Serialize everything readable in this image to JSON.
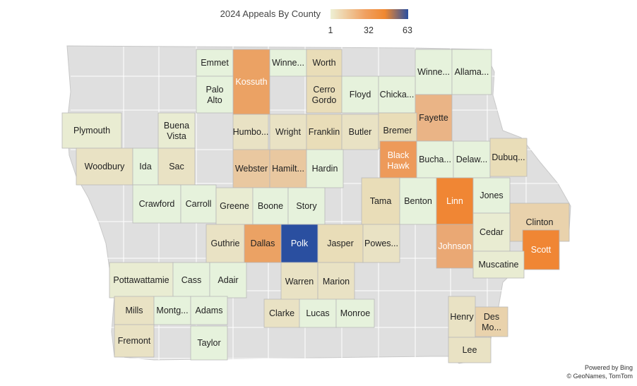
{
  "legend": {
    "title": "2024 Appeals By County",
    "min_label": "1",
    "mid_label": "32",
    "max_label": "63",
    "colors": [
      "#eef0d4",
      "#f0a060",
      "#f08830",
      "#2a4fa0"
    ]
  },
  "attribution": {
    "line1": "Powered by Bing",
    "line2": "© GeoNames, TomTom"
  },
  "map_colors": {
    "no_data": "#dfdfdf",
    "border": "#b8b8b8",
    "water_edge": "#c8c8c8"
  },
  "counties": [
    {
      "label": "Emmet",
      "color": "#e6f2dc"
    },
    {
      "label": "Kossuth",
      "color": "#eba264",
      "light": true
    },
    {
      "label": "Winne...",
      "color": "#e6f2dc"
    },
    {
      "label": "Worth",
      "color": "#e9ddb8"
    },
    {
      "label": "Winne...",
      "color": "#e6f2dc"
    },
    {
      "label": "Allama...",
      "color": "#e6f2dc"
    },
    {
      "label": "Palo Alto",
      "color": "#e6f2dc"
    },
    {
      "label": "Cerro Gordo",
      "color": "#e9ddb8"
    },
    {
      "label": "Floyd",
      "color": "#e6f2dc"
    },
    {
      "label": "Chicka...",
      "color": "#e6f2dc"
    },
    {
      "label": "Fayette",
      "color": "#eab486"
    },
    {
      "label": "Plymouth",
      "color": "#e9ecd2"
    },
    {
      "label": "Buena Vista",
      "color": "#e9ecd2"
    },
    {
      "label": "Humbo...",
      "color": "#e9e2c4"
    },
    {
      "label": "Wright",
      "color": "#e9e2c4"
    },
    {
      "label": "Franklin",
      "color": "#e9ddb8"
    },
    {
      "label": "Butler",
      "color": "#e9e2c4"
    },
    {
      "label": "Bremer",
      "color": "#e9ddb8"
    },
    {
      "label": "Black Hawk",
      "color": "#ed9a5a",
      "light": true
    },
    {
      "label": "Bucha...",
      "color": "#e6f2dc"
    },
    {
      "label": "Delaw...",
      "color": "#e6f2dc"
    },
    {
      "label": "Dubuq...",
      "color": "#e9ddb8"
    },
    {
      "label": "Woodbury",
      "color": "#e9e2c4"
    },
    {
      "label": "Ida",
      "color": "#e6f2dc"
    },
    {
      "label": "Sac",
      "color": "#e9e2c4"
    },
    {
      "label": "Webster",
      "color": "#e9c8a0"
    },
    {
      "label": "Hamilt...",
      "color": "#e9c8a0"
    },
    {
      "label": "Hardin",
      "color": "#e6f2dc"
    },
    {
      "label": "Crawford",
      "color": "#e6f2dc"
    },
    {
      "label": "Carroll",
      "color": "#e6f2dc"
    },
    {
      "label": "Greene",
      "color": "#e9ecd2"
    },
    {
      "label": "Boone",
      "color": "#e6f2dc"
    },
    {
      "label": "Story",
      "color": "#e6f2dc"
    },
    {
      "label": "Tama",
      "color": "#e9ddb8"
    },
    {
      "label": "Benton",
      "color": "#e6f2dc"
    },
    {
      "label": "Linn",
      "color": "#f08634",
      "light": true
    },
    {
      "label": "Jones",
      "color": "#e6f2dc"
    },
    {
      "label": "Clinton",
      "color": "#e9d2ac"
    },
    {
      "label": "Guthrie",
      "color": "#e9e2c4"
    },
    {
      "label": "Dallas",
      "color": "#eba264"
    },
    {
      "label": "Polk",
      "color": "#2a4fa0",
      "light": true
    },
    {
      "label": "Jasper",
      "color": "#e9ddb8"
    },
    {
      "label": "Powes...",
      "color": "#e9e2c4"
    },
    {
      "label": "Johnson",
      "color": "#eaa874",
      "light": true
    },
    {
      "label": "Cedar",
      "color": "#e9ecd2"
    },
    {
      "label": "Scott",
      "color": "#f08634",
      "light": true
    },
    {
      "label": "Muscatine",
      "color": "#e9ecd2"
    },
    {
      "label": "Pottawattamie",
      "color": "#e9ecd2"
    },
    {
      "label": "Cass",
      "color": "#e6f2dc"
    },
    {
      "label": "Adair",
      "color": "#e6f2dc"
    },
    {
      "label": "Warren",
      "color": "#e9e2c4"
    },
    {
      "label": "Marion",
      "color": "#e9e2c4"
    },
    {
      "label": "Mills",
      "color": "#e9e2c4"
    },
    {
      "label": "Montg...",
      "color": "#e6f2dc"
    },
    {
      "label": "Adams",
      "color": "#e6f2dc"
    },
    {
      "label": "Clarke",
      "color": "#e9e2c4"
    },
    {
      "label": "Lucas",
      "color": "#e6f2dc"
    },
    {
      "label": "Monroe",
      "color": "#e6f2dc"
    },
    {
      "label": "Henry",
      "color": "#e9e2c4"
    },
    {
      "label": "Des Mo...",
      "color": "#e9d2ac"
    },
    {
      "label": "Fremont",
      "color": "#e9e2c4"
    },
    {
      "label": "Taylor",
      "color": "#e6f2dc"
    },
    {
      "label": "Lee",
      "color": "#e9e2c4"
    }
  ]
}
